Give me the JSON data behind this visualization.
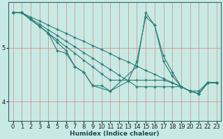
{
  "xlabel": "Humidex (Indice chaleur)",
  "ylabel": "",
  "bg_color": "#c8eae4",
  "line_color": "#2d7d78",
  "grid_color": "#e08080",
  "xlim": [
    -0.5,
    23.5
  ],
  "ylim": [
    3.65,
    5.85
  ],
  "yticks": [
    4,
    5
  ],
  "xticks": [
    0,
    1,
    2,
    3,
    4,
    5,
    6,
    7,
    8,
    9,
    10,
    11,
    12,
    13,
    14,
    15,
    16,
    17,
    18,
    19,
    20,
    21,
    22,
    23
  ],
  "lines": [
    {
      "x": [
        0,
        1,
        2,
        3,
        4,
        5,
        6,
        7,
        8,
        9,
        10,
        11,
        12,
        13,
        14,
        15,
        16,
        17,
        18,
        19,
        20,
        21,
        22,
        23
      ],
      "y": [
        5.65,
        5.65,
        5.57,
        5.5,
        5.42,
        5.34,
        5.27,
        5.19,
        5.12,
        5.04,
        4.97,
        4.89,
        4.81,
        4.74,
        4.66,
        4.58,
        4.51,
        4.43,
        4.36,
        4.28,
        4.2,
        4.2,
        4.36,
        4.36
      ]
    },
    {
      "x": [
        0,
        1,
        2,
        3,
        4,
        5,
        6,
        7,
        8,
        9,
        10,
        11,
        12,
        13,
        14,
        15,
        16,
        17,
        18,
        19,
        20,
        21,
        22,
        23
      ],
      "y": [
        5.65,
        5.65,
        5.54,
        5.44,
        5.33,
        5.23,
        5.12,
        5.02,
        4.91,
        4.81,
        4.7,
        4.6,
        4.49,
        4.39,
        4.28,
        4.28,
        4.28,
        4.28,
        4.28,
        4.28,
        4.2,
        4.15,
        4.35,
        4.35
      ]
    },
    {
      "x": [
        0,
        1,
        2,
        3,
        4,
        5,
        6,
        7,
        8,
        9,
        10,
        11,
        12,
        13,
        14,
        15,
        16,
        17,
        18,
        19,
        20,
        21,
        22,
        23
      ],
      "y": [
        5.65,
        5.65,
        5.52,
        5.4,
        5.27,
        5.15,
        5.02,
        4.9,
        4.77,
        4.65,
        4.52,
        4.4,
        4.4,
        4.4,
        4.4,
        4.4,
        4.4,
        4.4,
        4.35,
        4.28,
        4.2,
        4.15,
        4.35,
        4.35
      ]
    },
    {
      "x": [
        0,
        1,
        3,
        4,
        5,
        6,
        7,
        8,
        9,
        11,
        14,
        15,
        16,
        17,
        18,
        19,
        20,
        21,
        22,
        23
      ],
      "y": [
        5.65,
        5.65,
        5.4,
        5.27,
        5.1,
        4.95,
        4.65,
        4.55,
        4.3,
        4.2,
        4.65,
        5.65,
        5.42,
        4.75,
        4.48,
        4.28,
        4.2,
        4.15,
        4.35,
        4.35
      ]
    },
    {
      "x": [
        0,
        1,
        3,
        4,
        5,
        6,
        7,
        8,
        9,
        10,
        11,
        13,
        14,
        15,
        16,
        17,
        18,
        19,
        20,
        21,
        22,
        23
      ],
      "y": [
        5.65,
        5.65,
        5.4,
        5.27,
        4.95,
        4.9,
        4.65,
        4.55,
        4.3,
        4.3,
        4.2,
        4.38,
        4.75,
        5.58,
        5.42,
        4.85,
        4.55,
        4.28,
        4.2,
        4.15,
        4.35,
        4.35
      ]
    }
  ]
}
